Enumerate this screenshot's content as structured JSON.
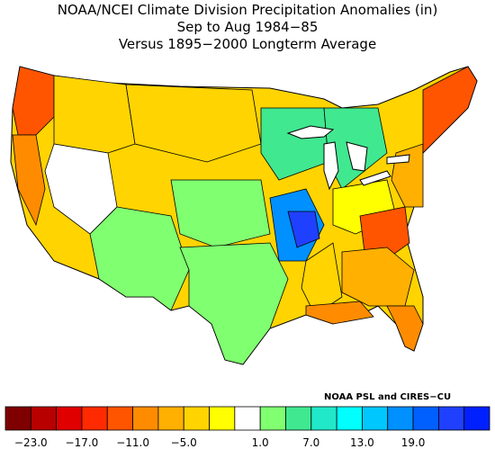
{
  "title": {
    "line1": "NOAA/NCEI Climate Division Precipitation Anomalies (in)",
    "line2": "Sep to Aug 1984−85",
    "line3": "Versus 1895−2000 Longterm Average"
  },
  "credit": "NOAA PSL and CIRES−CU",
  "legend": {
    "colors": [
      "#7f0000",
      "#b80000",
      "#e00000",
      "#ff2a00",
      "#ff5500",
      "#ff8c00",
      "#ffb000",
      "#ffd400",
      "#ffff00",
      "#ffffff",
      "#80ff70",
      "#40e890",
      "#20e8c8",
      "#00ffff",
      "#00c8ff",
      "#0090ff",
      "#0060ff",
      "#2040ff",
      "#0020ff"
    ],
    "tick_labels": [
      "−23.0",
      "−17.0",
      "−11.0",
      "−5.0",
      "1.0",
      "7.0",
      "13.0",
      "19.0"
    ],
    "tick_boundaries": [
      1,
      3,
      5,
      7,
      10,
      12,
      14,
      16
    ]
  },
  "map": {
    "region": "Contiguous United States climate divisions",
    "regions": [
      {
        "name": "Pacific Northwest coast",
        "category": "strong-dry",
        "color": "#ff5500"
      },
      {
        "name": "Northwest interior",
        "category": "dry",
        "color": "#ffd400"
      },
      {
        "name": "California coast",
        "category": "dry",
        "color": "#ff8c00"
      },
      {
        "name": "Great Basin",
        "category": "near-normal",
        "color": "#ffffff"
      },
      {
        "name": "Northern Rockies and Plains",
        "category": "dry",
        "color": "#ffd400"
      },
      {
        "name": "Southwest",
        "category": "wet",
        "color": "#80ff70"
      },
      {
        "name": "Central Plains",
        "category": "wet",
        "color": "#80ff70"
      },
      {
        "name": "Texas",
        "category": "wet",
        "color": "#80ff70"
      },
      {
        "name": "Upper Midwest",
        "category": "wet",
        "color": "#40e890"
      },
      {
        "name": "Mid-Mississippi Valley",
        "category": "very-wet",
        "color": "#0090ff"
      },
      {
        "name": "Missouri-Arkansas core",
        "category": "very-wet",
        "color": "#2040ff"
      },
      {
        "name": "Great Lakes",
        "category": "wet",
        "color": "#40e890"
      },
      {
        "name": "Ohio Valley",
        "category": "near-normal",
        "color": "#ffff00"
      },
      {
        "name": "Lower Mississippi",
        "category": "dry",
        "color": "#ffd400"
      },
      {
        "name": "Gulf Coast",
        "category": "dry",
        "color": "#ff8c00"
      },
      {
        "name": "Southern Appalachians",
        "category": "strong-dry",
        "color": "#ff5500"
      },
      {
        "name": "Southeast",
        "category": "dry",
        "color": "#ffb000"
      },
      {
        "name": "Florida",
        "category": "strong-dry",
        "color": "#ff8c00"
      },
      {
        "name": "Mid-Atlantic",
        "category": "dry",
        "color": "#ffb000"
      },
      {
        "name": "New England",
        "category": "strong-dry",
        "color": "#ff5500"
      }
    ]
  }
}
